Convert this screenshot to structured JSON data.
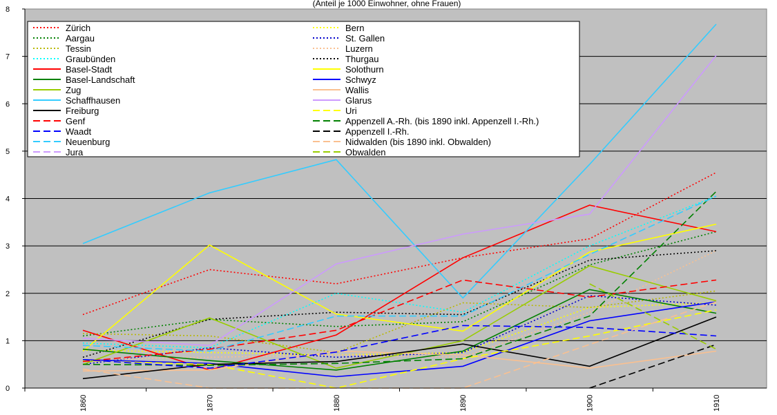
{
  "chart_data": {
    "type": "line",
    "title": "(Anteil je 1000 Einwohner, ohne Frauen)",
    "x": [
      "1860",
      "1870",
      "1880",
      "1890",
      "1900",
      "1910"
    ],
    "ylim": [
      0,
      8
    ],
    "yticks": [
      0,
      1,
      2,
      3,
      4,
      5,
      6,
      7,
      8
    ],
    "grid": true,
    "legend": "top-left",
    "background": "#c0c0c0",
    "series": [
      {
        "name": "Zürich",
        "color": "#ff0000",
        "dash": "dotted",
        "values": [
          1.55,
          2.5,
          2.2,
          2.75,
          3.15,
          4.55
        ]
      },
      {
        "name": "Bern",
        "color": "#ffff00",
        "dash": "dotted",
        "values": [
          0.8,
          0.75,
          0.7,
          0.75,
          1.7,
          1.8
        ]
      },
      {
        "name": "Aargau",
        "color": "#008000",
        "dash": "dotted",
        "values": [
          1.1,
          1.45,
          1.3,
          1.4,
          2.6,
          3.3
        ]
      },
      {
        "name": "St. Gallen",
        "color": "#0000cc",
        "dash": "dotted",
        "values": [
          0.5,
          0.85,
          0.65,
          0.75,
          1.95,
          1.75
        ]
      },
      {
        "name": "Tessin",
        "color": "#b8b800",
        "dash": "dotted",
        "values": [
          1.15,
          1.1,
          0.75,
          1.8,
          1.7,
          2.05
        ]
      },
      {
        "name": "Luzern",
        "color": "#fac090",
        "dash": "dotted",
        "values": [
          0.6,
          0.65,
          0.7,
          0.65,
          1.6,
          2.9
        ]
      },
      {
        "name": "Graubünden",
        "color": "#00ffff",
        "dash": "dotted",
        "values": [
          0.95,
          0.85,
          2.0,
          1.6,
          3.0,
          4.05
        ]
      },
      {
        "name": "Thurgau",
        "color": "#000000",
        "dash": "dotted",
        "values": [
          0.65,
          1.45,
          1.6,
          1.55,
          2.7,
          2.9
        ]
      },
      {
        "name": "Basel-Stadt",
        "color": "#ff0000",
        "dash": "solid",
        "values": [
          1.22,
          0.38,
          1.12,
          2.75,
          3.86,
          3.3
        ]
      },
      {
        "name": "Solothurn",
        "color": "#ffff00",
        "dash": "solid",
        "values": [
          0.78,
          3.02,
          1.56,
          1.2,
          2.87,
          3.46
        ]
      },
      {
        "name": "Basel-Landschaft",
        "color": "#008000",
        "dash": "solid",
        "values": [
          0.82,
          0.58,
          0.38,
          0.78,
          2.08,
          1.58
        ]
      },
      {
        "name": "Schwyz",
        "color": "#0000ff",
        "dash": "solid",
        "values": [
          0.6,
          0.52,
          0.24,
          0.46,
          1.42,
          1.82
        ]
      },
      {
        "name": "Zug",
        "color": "#99cc00",
        "dash": "solid",
        "values": [
          0.5,
          1.48,
          0.42,
          1.0,
          2.58,
          1.84
        ]
      },
      {
        "name": "Wallis",
        "color": "#fac090",
        "dash": "solid",
        "values": [
          0.36,
          0.38,
          0.78,
          0.7,
          0.42,
          0.78
        ]
      },
      {
        "name": "Schaffhausen",
        "color": "#33ccff",
        "dash": "solid",
        "values": [
          3.05,
          4.12,
          4.82,
          1.9,
          4.72,
          7.68
        ]
      },
      {
        "name": "Glarus",
        "color": "#cc99ff",
        "dash": "solid",
        "values": [
          1.05,
          0.9,
          2.62,
          3.25,
          3.67,
          7.02
        ]
      },
      {
        "name": "Freiburg",
        "color": "#000000",
        "dash": "solid",
        "values": [
          0.2,
          0.5,
          0.56,
          0.93,
          0.46,
          1.5
        ]
      },
      {
        "name": "Uri",
        "color": "#ffff00",
        "dash": "dashed",
        "values": [
          0.58,
          0.5,
          0.0,
          0.62,
          1.1,
          1.65
        ]
      },
      {
        "name": "Genf",
        "color": "#ff0000",
        "dash": "dashed",
        "values": [
          0.56,
          0.82,
          1.22,
          2.28,
          1.92,
          2.28
        ]
      },
      {
        "name": "Appenzell A.-Rh. (bis 1890 inkl. Appenzell I.-Rh.)",
        "color": "#008000",
        "dash": "dashed",
        "values": [
          0.5,
          0.48,
          0.52,
          0.62,
          1.52,
          4.15
        ]
      },
      {
        "name": "Waadt",
        "color": "#0000ff",
        "dash": "dashed",
        "values": [
          0.6,
          0.42,
          0.76,
          1.32,
          1.28,
          1.1
        ]
      },
      {
        "name": "Appenzell I.-Rh.",
        "color": "#000000",
        "dash": "dashed",
        "values": [
          null,
          null,
          null,
          null,
          0.0,
          0.92
        ]
      },
      {
        "name": "Neuenburg",
        "color": "#33ccff",
        "dash": "dashed",
        "values": [
          0.9,
          0.78,
          1.52,
          1.52,
          2.82,
          4.05
        ]
      },
      {
        "name": "Nidwalden (bis 1890 inkl. Obwalden)",
        "color": "#fac090",
        "dash": "dashed",
        "values": [
          0.4,
          0.0,
          0.0,
          0.0,
          0.92,
          1.82
        ]
      },
      {
        "name": "Jura",
        "color": "#cc99ff",
        "dash": "dashed",
        "values": [
          null,
          null,
          null,
          null,
          null,
          null
        ]
      },
      {
        "name": "Obwalden",
        "color": "#99cc00",
        "dash": "dashed",
        "values": [
          null,
          null,
          null,
          null,
          2.2,
          0.82
        ]
      }
    ]
  }
}
